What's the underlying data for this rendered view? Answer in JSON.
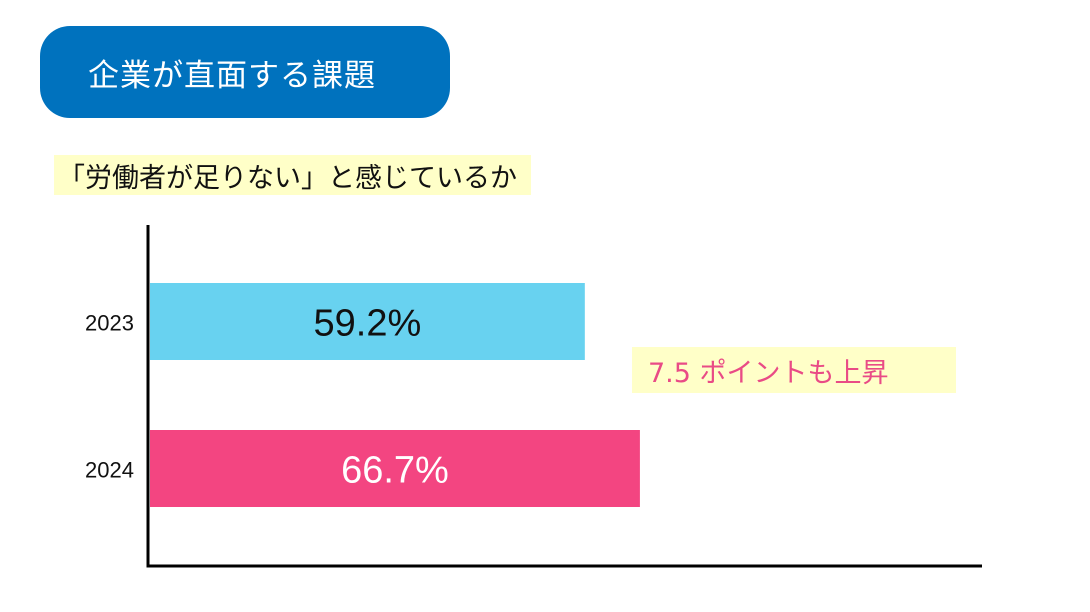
{
  "header": {
    "title": "企業が直面する課題"
  },
  "colors": {
    "badge_bg": "#0072be",
    "subtitle_highlight": "#ffffc8",
    "annotation_highlight": "#ffffc8",
    "annotation_text": "#e94b86",
    "axis": "#000000",
    "bar_2023": "#68d2f0",
    "bar_2024": "#f34581",
    "label_2023_text": "#111111",
    "label_2024_text": "#ffffff"
  },
  "chart_data": {
    "type": "bar",
    "orientation": "horizontal",
    "title": "「労働者が足りない」と感じているか",
    "categories": [
      "2023",
      "2024"
    ],
    "values": [
      59.2,
      66.7
    ],
    "value_labels": [
      "59.2%",
      "66.7%"
    ],
    "xlim": [
      0,
      100
    ],
    "grid": false,
    "annotation": "7.5 ポイントも上昇"
  }
}
